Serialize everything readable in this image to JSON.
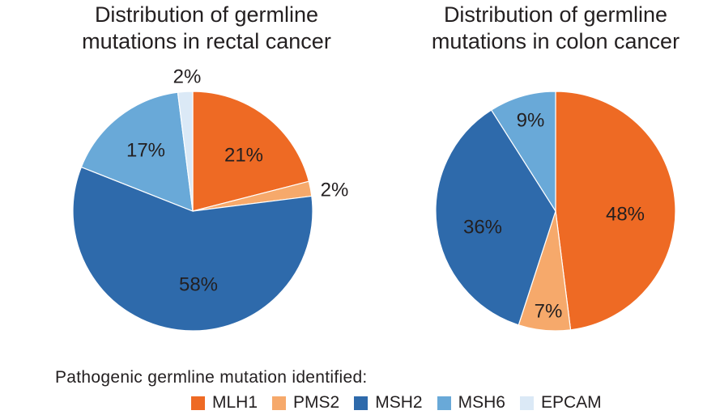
{
  "chart_data": [
    {
      "type": "pie",
      "title_lines": [
        "Distribution of germline",
        "mutations in rectal cancer"
      ],
      "slices": [
        {
          "name": "MLH1",
          "value": 21,
          "label": "21%"
        },
        {
          "name": "PMS2",
          "value": 2,
          "label": "2%"
        },
        {
          "name": "MSH2",
          "value": 58,
          "label": "58%"
        },
        {
          "name": "MSH6",
          "value": 17,
          "label": "17%"
        },
        {
          "name": "EPCAM",
          "value": 2,
          "label": "2%"
        }
      ]
    },
    {
      "type": "pie",
      "title_lines": [
        "Distribution of germline",
        "mutations in colon cancer"
      ],
      "slices": [
        {
          "name": "MLH1",
          "value": 48,
          "label": "48%"
        },
        {
          "name": "PMS2",
          "value": 7,
          "label": "7%"
        },
        {
          "name": "MSH2",
          "value": 36,
          "label": "36%"
        },
        {
          "name": "MSH6",
          "value": 9,
          "label": "9%"
        }
      ]
    }
  ],
  "legend": {
    "heading": "Pathogenic germline mutation identified:",
    "items": [
      {
        "name": "MLH1",
        "color": "#ee6a24"
      },
      {
        "name": "PMS2",
        "color": "#f6a96b"
      },
      {
        "name": "MSH2",
        "color": "#2e6aab"
      },
      {
        "name": "MSH6",
        "color": "#69a9d8"
      },
      {
        "name": "EPCAM",
        "color": "#dbe9f6"
      }
    ]
  }
}
